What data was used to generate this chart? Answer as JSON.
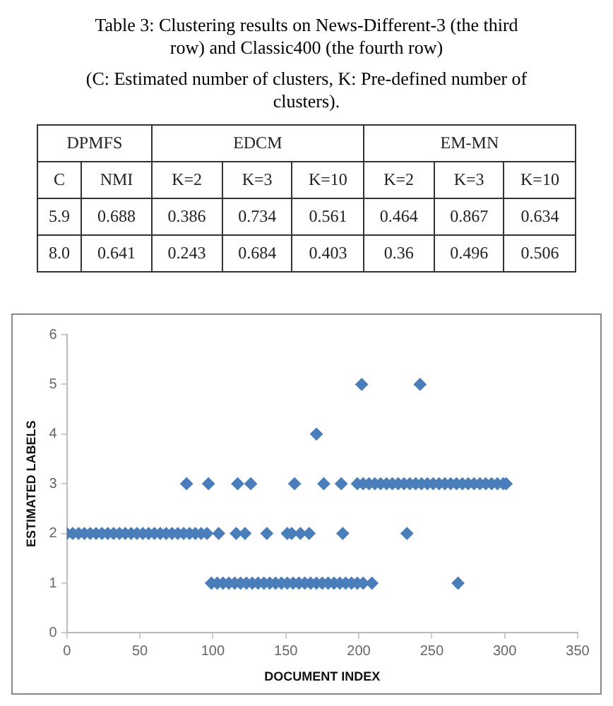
{
  "chart_data": [
    {
      "type": "other",
      "title": "Table 3: Clustering results on News-Different-3 (the third row) and Classic400 (the fourth row)",
      "subtitle": "(C: Estimated number of clusters, K: Pre-defined number of clusters).",
      "annotations": [
        "DPMFS",
        "EDCM",
        "EM-MN",
        "C",
        "NMI",
        "K=2",
        "K=3",
        "K=10",
        "K=2",
        "K=3",
        "K=10",
        "5.9",
        "0.688",
        "0.386",
        "0.734",
        "0.561",
        "0.464",
        "0.867",
        "0.634",
        "8.0",
        "0.641",
        "0.243",
        "0.684",
        "0.403",
        "0.36",
        "0.496",
        "0.506"
      ]
    },
    {
      "type": "scatter",
      "xlabel": "DOCUMENT INDEX",
      "ylabel": "ESTIMATED LABELS",
      "xlim": [
        0,
        350
      ],
      "xticks": [
        0,
        50,
        100,
        150,
        200,
        250,
        300,
        350
      ],
      "ylim": [
        0,
        6
      ],
      "yticks": [
        0,
        1,
        2,
        3,
        4,
        5,
        6
      ],
      "grid": false,
      "marker": "diamond",
      "series": [
        {
          "color": "#4a7ebb",
          "x": [
            0,
            4,
            8,
            12,
            16,
            20,
            24,
            28,
            32,
            36,
            40,
            44,
            48,
            52,
            56,
            60,
            64,
            68,
            72,
            76,
            80,
            84,
            88,
            92,
            96,
            104,
            116,
            122,
            137,
            151,
            154,
            160,
            166,
            189,
            233,
            99,
            103,
            107,
            111,
            115,
            119,
            123,
            127,
            131,
            135,
            139,
            143,
            147,
            151,
            155,
            159,
            163,
            167,
            171,
            175,
            179,
            183,
            187,
            191,
            195,
            199,
            203,
            209,
            268,
            82,
            97,
            117,
            126,
            156,
            176,
            188,
            199,
            203,
            207,
            211,
            215,
            219,
            223,
            227,
            231,
            235,
            239,
            243,
            247,
            251,
            255,
            259,
            263,
            267,
            271,
            275,
            279,
            283,
            287,
            291,
            295,
            299,
            301,
            171,
            202,
            242
          ],
          "values": [
            2,
            2,
            2,
            2,
            2,
            2,
            2,
            2,
            2,
            2,
            2,
            2,
            2,
            2,
            2,
            2,
            2,
            2,
            2,
            2,
            2,
            2,
            2,
            2,
            2,
            2,
            2,
            2,
            2,
            2,
            2,
            2,
            2,
            2,
            2,
            1,
            1,
            1,
            1,
            1,
            1,
            1,
            1,
            1,
            1,
            1,
            1,
            1,
            1,
            1,
            1,
            1,
            1,
            1,
            1,
            1,
            1,
            1,
            1,
            1,
            1,
            1,
            1,
            1,
            3,
            3,
            3,
            3,
            3,
            3,
            3,
            3,
            3,
            3,
            3,
            3,
            3,
            3,
            3,
            3,
            3,
            3,
            3,
            3,
            3,
            3,
            3,
            3,
            3,
            3,
            3,
            3,
            3,
            3,
            3,
            3,
            3,
            3,
            4,
            5,
            5
          ]
        }
      ]
    }
  ]
}
